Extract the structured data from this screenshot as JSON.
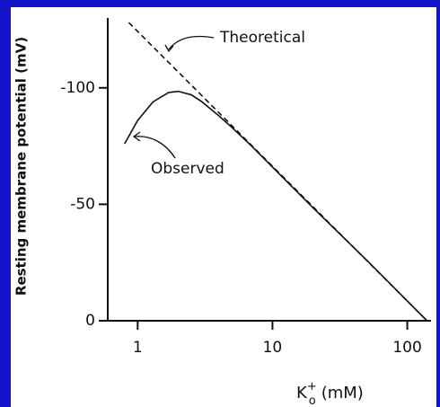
{
  "chart_data": {
    "type": "line",
    "ylabel": "Resting membrane potential (mV)",
    "xlabel": {
      "main": "K",
      "sup": "+",
      "sub": "o",
      "unit": "(mM)"
    },
    "xscale": "log",
    "xlim": [
      0.6,
      150
    ],
    "xticks": [
      1,
      10,
      100
    ],
    "ylim": [
      0,
      -130
    ],
    "yticks": [
      0,
      -50,
      -100
    ],
    "series": [
      {
        "name": "Theoretical",
        "color": "#111111",
        "dash": true,
        "x": [
          0.86,
          140
        ],
        "values": [
          -128,
          0
        ]
      },
      {
        "name": "Observed",
        "color": "#111111",
        "dash": false,
        "x": [
          0.8,
          1.0,
          1.3,
          1.7,
          2.0,
          2.5,
          3,
          4,
          5,
          7,
          10,
          20,
          50,
          100,
          140
        ],
        "values": [
          -76,
          -86,
          -94,
          -98,
          -98.5,
          -97,
          -94,
          -88,
          -83,
          -75,
          -66,
          -48.5,
          -26,
          -8.5,
          0
        ]
      }
    ]
  }
}
